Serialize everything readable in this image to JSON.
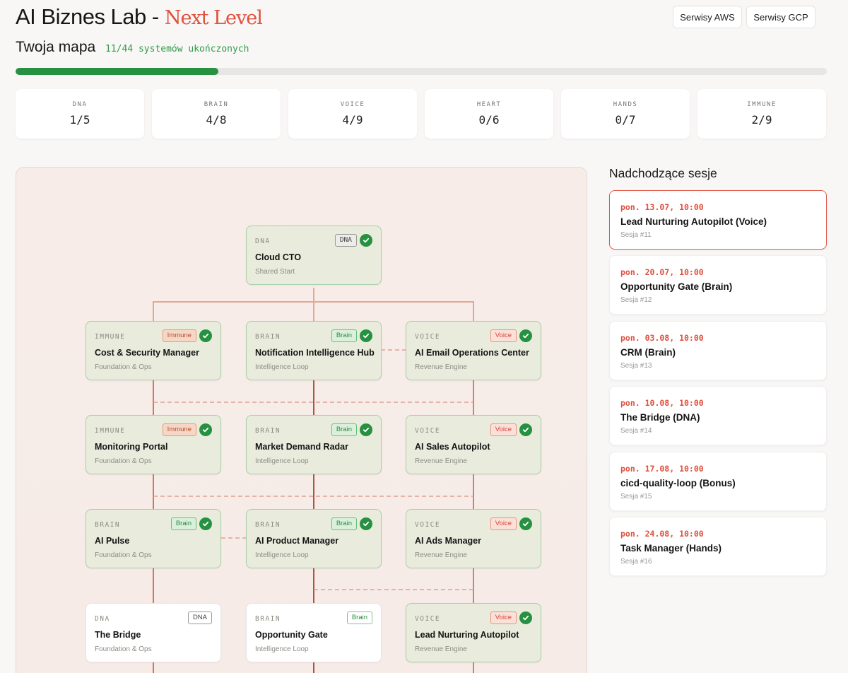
{
  "header": {
    "title_main": "AI Biznes Lab - ",
    "title_accent": "Next Level",
    "buttons": [
      "Serwisy AWS",
      "Serwisy GCP"
    ]
  },
  "map": {
    "subtitle": "Twoja mapa",
    "progress_text": "11/44 systemów ukończonych",
    "progress_fraction": 0.25
  },
  "stats": [
    {
      "label": "DNA",
      "value": "1/5"
    },
    {
      "label": "BRAIN",
      "value": "4/8"
    },
    {
      "label": "VOICE",
      "value": "4/9"
    },
    {
      "label": "HEART",
      "value": "0/6"
    },
    {
      "label": "HANDS",
      "value": "0/7"
    },
    {
      "label": "IMMUNE",
      "value": "2/9"
    }
  ],
  "nodes": [
    {
      "category": "DNA",
      "tag": "DNA",
      "name": "Cloud CTO",
      "group": "Shared Start",
      "done": true
    },
    {
      "category": "IMMUNE",
      "tag": "Immune",
      "name": "Cost & Security Manager",
      "group": "Foundation & Ops",
      "done": true
    },
    {
      "category": "BRAIN",
      "tag": "Brain",
      "name": "Notification Intelligence Hub",
      "group": "Intelligence Loop",
      "done": true
    },
    {
      "category": "VOICE",
      "tag": "Voice",
      "name": "AI Email Operations Center",
      "group": "Revenue Engine",
      "done": true
    },
    {
      "category": "IMMUNE",
      "tag": "Immune",
      "name": "Monitoring Portal",
      "group": "Foundation & Ops",
      "done": true
    },
    {
      "category": "BRAIN",
      "tag": "Brain",
      "name": "Market Demand Radar",
      "group": "Intelligence Loop",
      "done": true
    },
    {
      "category": "VOICE",
      "tag": "Voice",
      "name": "AI Sales Autopilot",
      "group": "Revenue Engine",
      "done": true
    },
    {
      "category": "BRAIN",
      "tag": "Brain",
      "name": "AI Pulse",
      "group": "Foundation & Ops",
      "done": true
    },
    {
      "category": "BRAIN",
      "tag": "Brain",
      "name": "AI Product Manager",
      "group": "Intelligence Loop",
      "done": true
    },
    {
      "category": "VOICE",
      "tag": "Voice",
      "name": "AI Ads Manager",
      "group": "Revenue Engine",
      "done": true
    },
    {
      "category": "DNA",
      "tag": "DNA",
      "name": "The Bridge",
      "group": "Foundation & Ops",
      "done": false
    },
    {
      "category": "BRAIN",
      "tag": "Brain",
      "name": "Opportunity Gate",
      "group": "Intelligence Loop",
      "done": false
    },
    {
      "category": "VOICE",
      "tag": "Voice",
      "name": "Lead Nurturing Autopilot",
      "group": "Revenue Engine",
      "done": true
    }
  ],
  "sessions": {
    "title": "Nadchodzące sesje",
    "items": [
      {
        "date": "pon. 13.07, 10:00",
        "title": "Lead Nurturing Autopilot (Voice)",
        "number": "Sesja #11"
      },
      {
        "date": "pon. 20.07, 10:00",
        "title": "Opportunity Gate (Brain)",
        "number": "Sesja #12"
      },
      {
        "date": "pon. 03.08, 10:00",
        "title": "CRM (Brain)",
        "number": "Sesja #13"
      },
      {
        "date": "pon. 10.08, 10:00",
        "title": "The Bridge (DNA)",
        "number": "Sesja #14"
      },
      {
        "date": "pon. 17.08, 10:00",
        "title": "cicd-quality-loop (Bonus)",
        "number": "Sesja #15"
      },
      {
        "date": "pon. 24.08, 10:00",
        "title": "Task Manager (Hands)",
        "number": "Sesja #16"
      }
    ]
  },
  "colors": {
    "accent": "#e0503d",
    "success": "#269141",
    "progress_text": "#2f9c48"
  }
}
